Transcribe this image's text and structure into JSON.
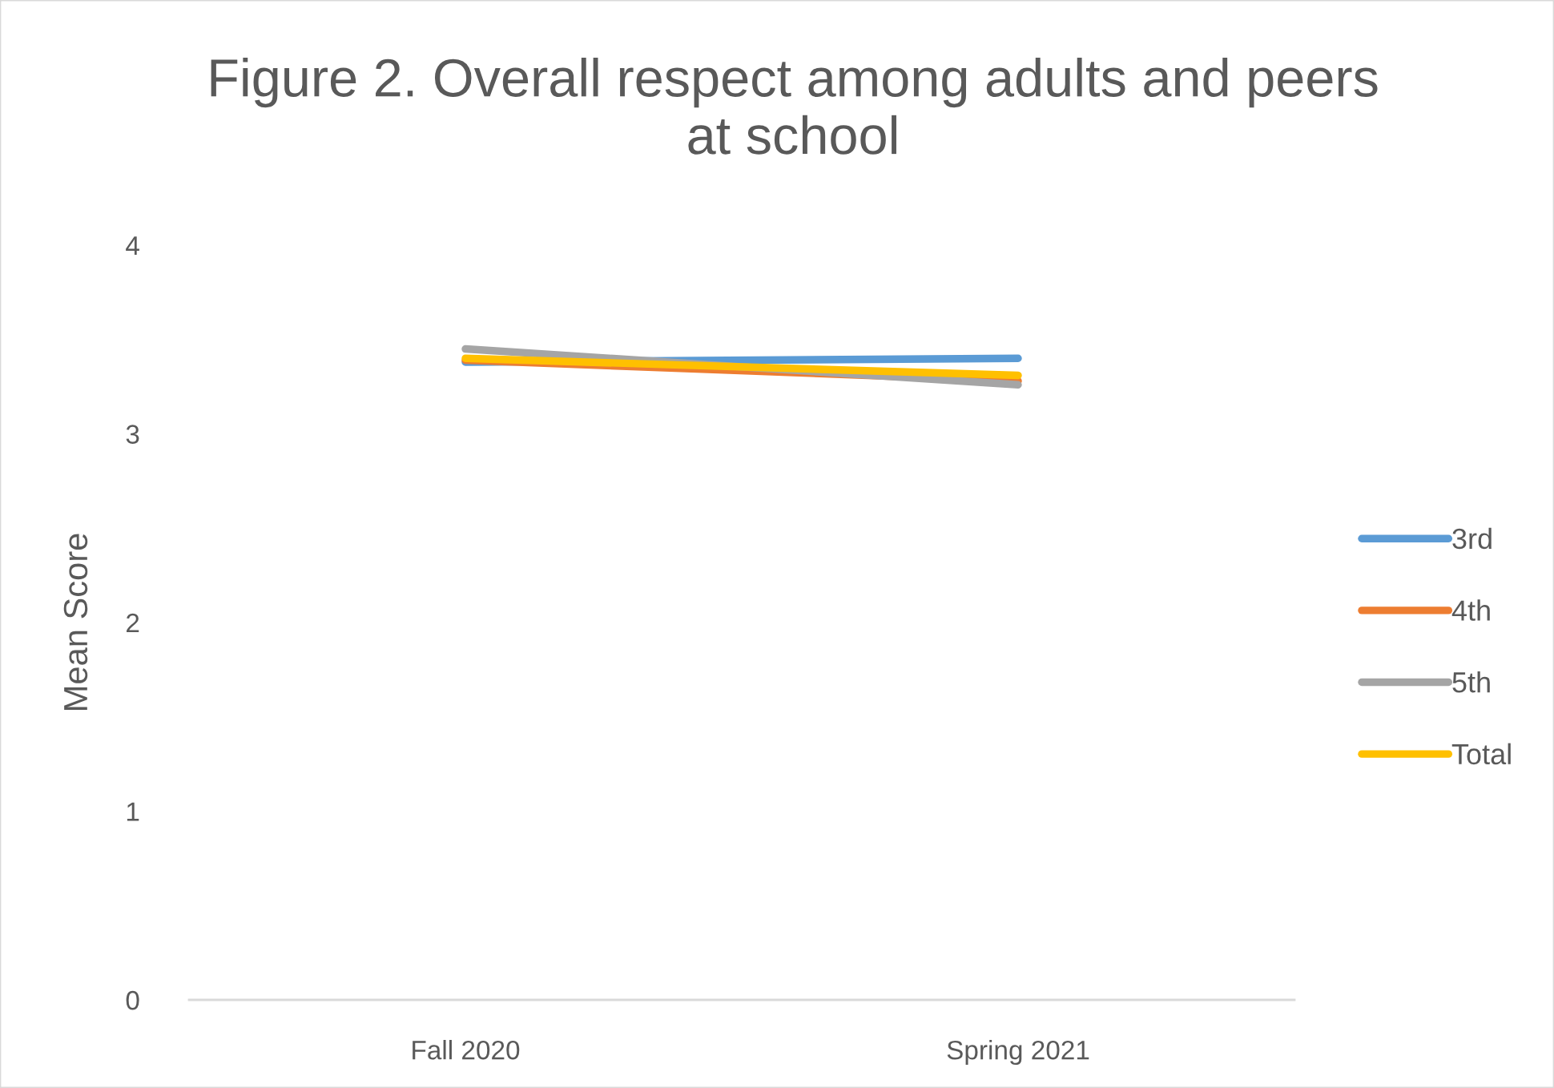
{
  "chart_data": {
    "type": "line",
    "title": "Figure 2. Overall respect among adults and peers at school",
    "ylabel": "Mean Score",
    "categories": [
      "Fall 2020",
      "Spring 2021"
    ],
    "series": [
      {
        "name": "3rd",
        "color": "#5b9bd5",
        "values": [
          3.38,
          3.4
        ]
      },
      {
        "name": "4th",
        "color": "#ed7d31",
        "values": [
          3.39,
          3.28
        ]
      },
      {
        "name": "5th",
        "color": "#a5a5a5",
        "values": [
          3.45,
          3.26
        ]
      },
      {
        "name": "Total",
        "color": "#ffc000",
        "values": [
          3.4,
          3.31
        ]
      }
    ],
    "ylim": [
      0,
      4
    ],
    "yticks": [
      0,
      1,
      2,
      3,
      4
    ],
    "legend": "right"
  }
}
